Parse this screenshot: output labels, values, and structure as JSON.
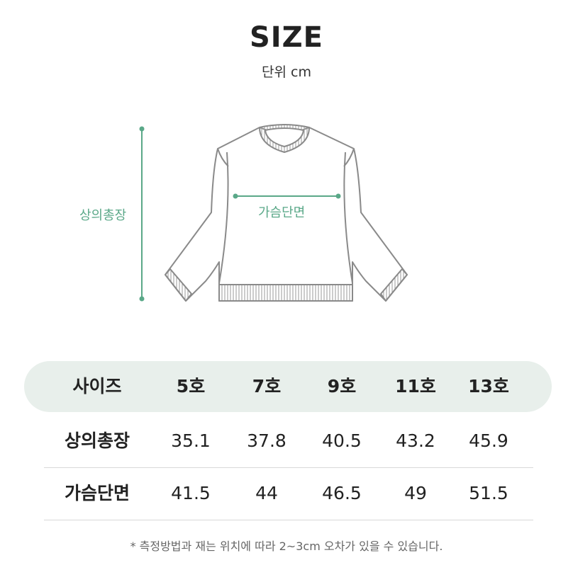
{
  "header": {
    "title": "SIZE",
    "unit": "단위 cm"
  },
  "illustration": {
    "length_label": "상의총장",
    "chest_label": "가슴단면",
    "accent_color": "#5aa888",
    "garment": "sweatshirt-outline"
  },
  "table": {
    "header_label": "사이즈",
    "sizes": [
      "5호",
      "7호",
      "9호",
      "11호",
      "13호"
    ],
    "rows": [
      {
        "label": "상의총장",
        "values": [
          "35.1",
          "37.8",
          "40.5",
          "43.2",
          "45.9"
        ]
      },
      {
        "label": "가슴단면",
        "values": [
          "41.5",
          "44",
          "46.5",
          "49",
          "51.5"
        ]
      }
    ],
    "header_bg": "#e8efeb"
  },
  "note": "* 측정방법과 재는 위치에 따라 2~3cm 오차가 있을 수 있습니다."
}
